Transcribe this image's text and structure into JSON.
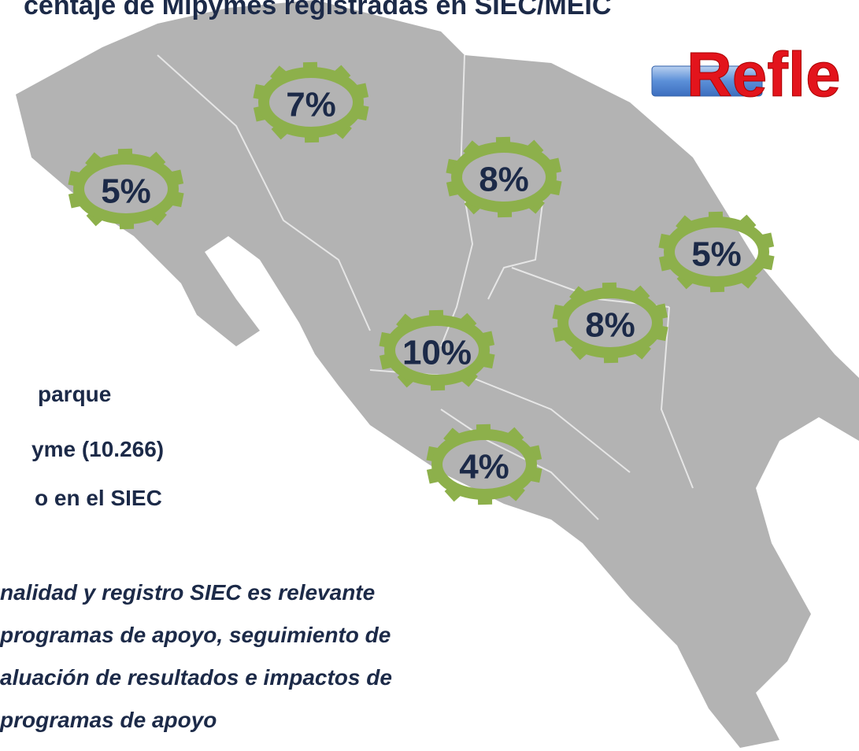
{
  "title": "centaje de Mipymes registradas en SIEC/MEIC",
  "banner": "Refle",
  "regions": [
    {
      "label": "7%"
    },
    {
      "label": "5%"
    },
    {
      "label": "8%"
    },
    {
      "label": "5%"
    },
    {
      "label": "8%"
    },
    {
      "label": "10%"
    },
    {
      "label": "4%"
    }
  ],
  "summary": [
    "parque",
    "yme (10.266)",
    "o en el SIEC"
  ],
  "note": [
    "nalidad y registro SIEC es relevante",
    "programas de apoyo, seguimiento de",
    "aluación de resultados e impactos de",
    "programas de apoyo"
  ]
}
